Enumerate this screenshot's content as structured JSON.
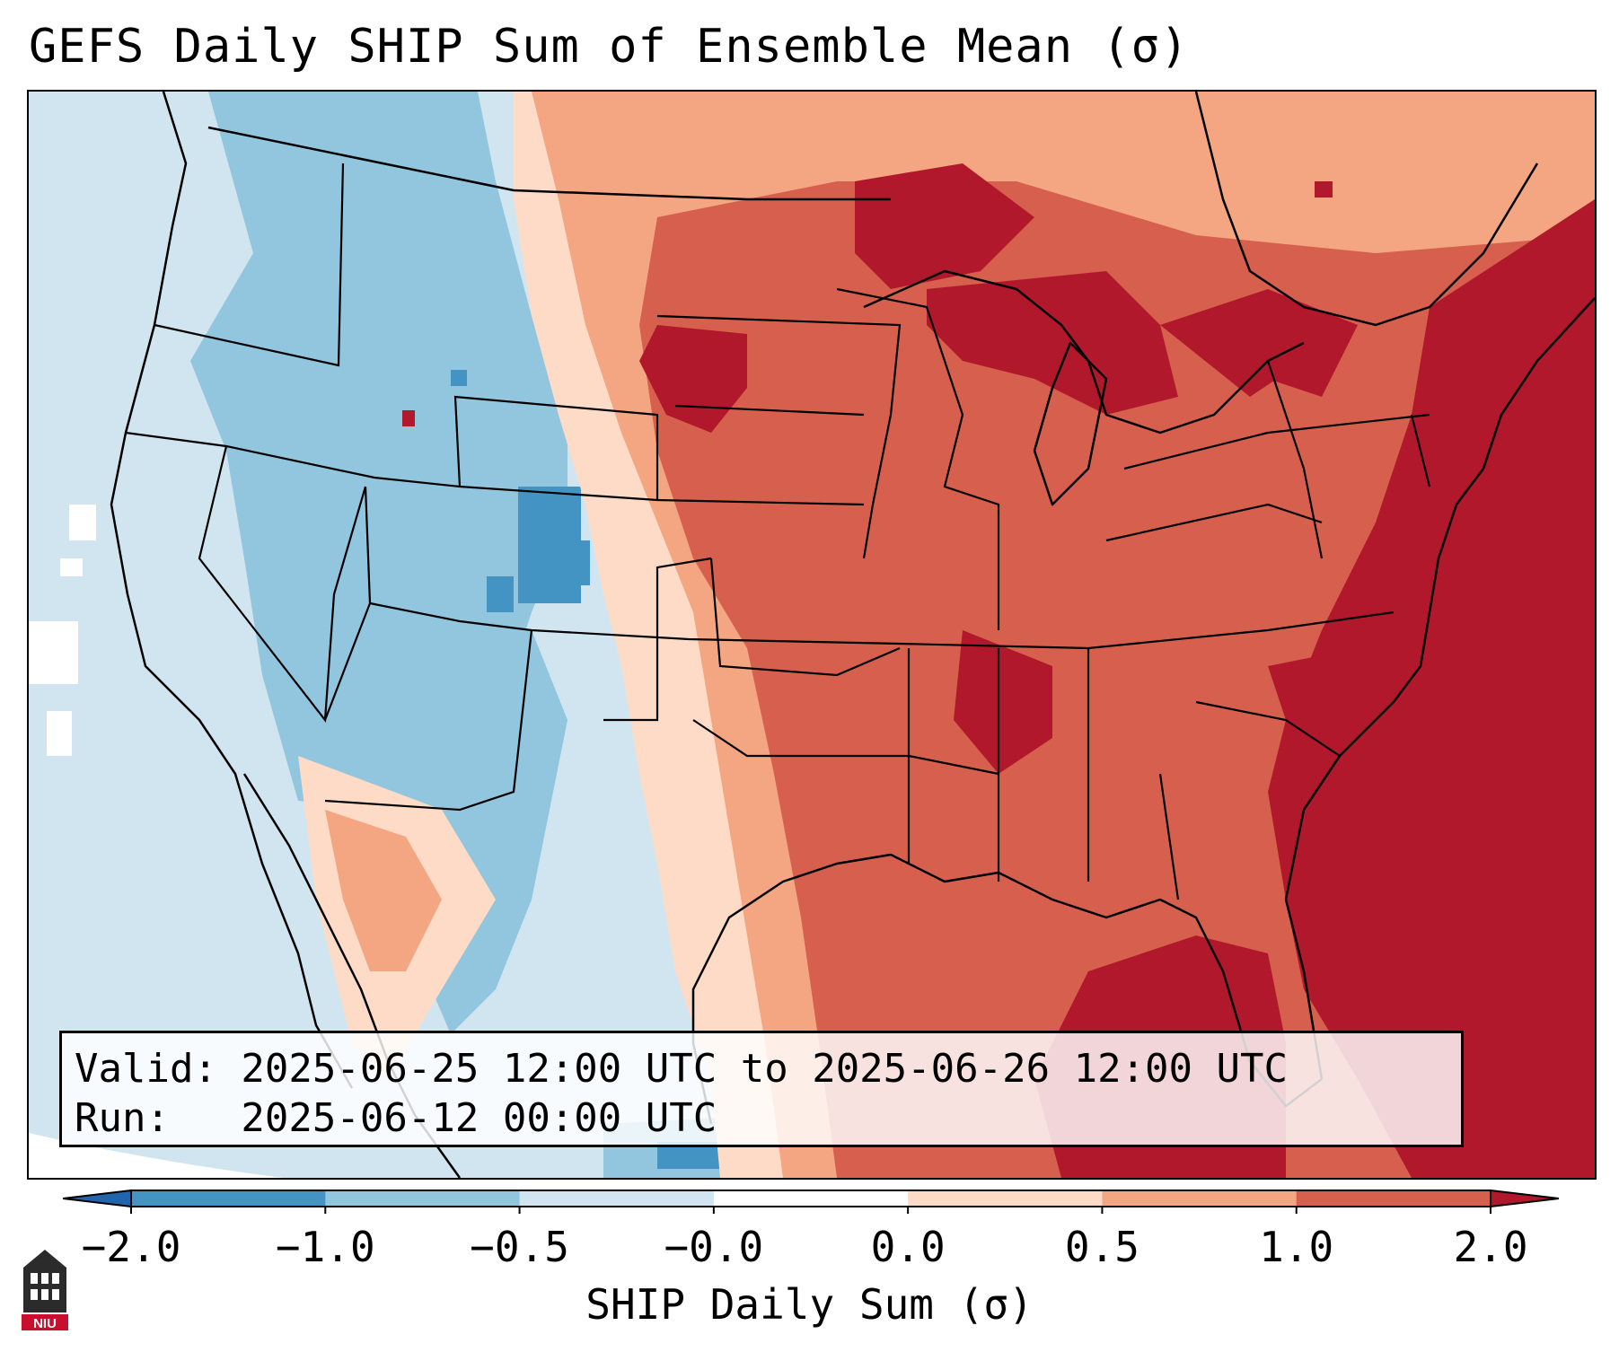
{
  "title": "GEFS Daily SHIP Sum of Ensemble Mean (σ)",
  "info": {
    "valid_line": "Valid: 2025-06-25 12:00 UTC to 2025-06-26 12:00 UTC",
    "run_line": "Run:   2025-06-12 00:00 UTC"
  },
  "colorbar": {
    "label": "SHIP Daily Sum (σ)",
    "ticks": [
      "−2.0",
      "−1.0",
      "−0.5",
      "−0.0",
      "0.0",
      "0.5",
      "1.0",
      "2.0"
    ],
    "colors": [
      "#2166ac",
      "#4393c3",
      "#92c5de",
      "#d1e5f0",
      "#ffffff",
      "#fddbc7",
      "#f4a582",
      "#d6604d",
      "#b2182b"
    ]
  },
  "map": {
    "region": "Contiguous United States",
    "colors": {
      "light_blue": "#d1e5f0",
      "mid_blue": "#92c5de",
      "dark_blue": "#4393c3",
      "light_red": "#fddbc7",
      "salmon": "#f4a582",
      "red": "#d6604d",
      "dark_red": "#b2182b",
      "border": "#000000"
    }
  },
  "logo": {
    "text": "NIU",
    "color": "#c8102e"
  }
}
